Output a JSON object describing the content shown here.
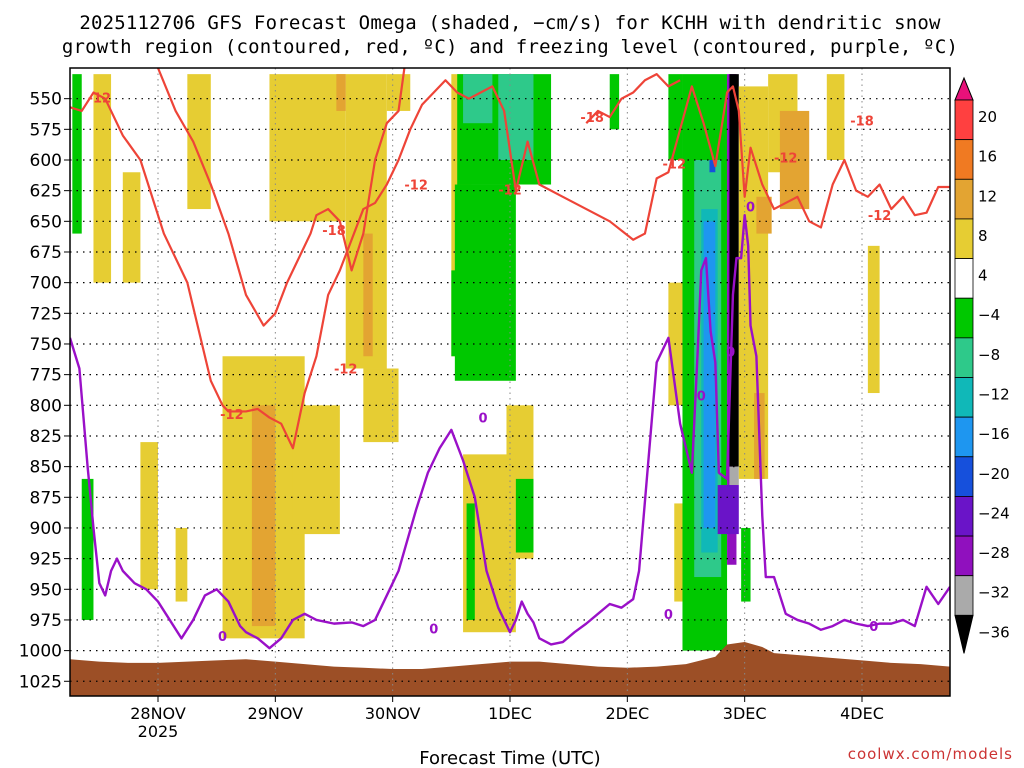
{
  "chart_data": {
    "type": "heatmap",
    "title_line1": "2025112706 GFS Forecast Omega (shaded, −cm/s) for KCHH with dendritic snow",
    "title_line2": "growth region (contoured, red, ºC) and freezing level (contoured, purple, ºC)",
    "xlabel": "Forecast Time (UTC)",
    "ylabel": "",
    "credit": "coolwx.com/models",
    "x_range_days": [
      0.0,
      7.5
    ],
    "y_range_hpa": [
      1037,
      525
    ],
    "x_ticks": [
      {
        "day": 0.75,
        "label": "28NOV",
        "sub": "2025"
      },
      {
        "day": 1.75,
        "label": "29NOV",
        "sub": ""
      },
      {
        "day": 2.75,
        "label": "30NOV",
        "sub": ""
      },
      {
        "day": 3.75,
        "label": "1DEC",
        "sub": ""
      },
      {
        "day": 4.75,
        "label": "2DEC",
        "sub": ""
      },
      {
        "day": 5.75,
        "label": "3DEC",
        "sub": ""
      },
      {
        "day": 6.75,
        "label": "4DEC",
        "sub": ""
      }
    ],
    "y_ticks": [
      550,
      575,
      600,
      625,
      650,
      675,
      700,
      725,
      750,
      775,
      800,
      825,
      850,
      875,
      900,
      925,
      950,
      975,
      1000,
      1025
    ],
    "colorbar": {
      "labels": [
        "20",
        "16",
        "12",
        "8",
        "4",
        "−4",
        "−8",
        "−12",
        "−16",
        "−20",
        "−24",
        "−28",
        "−32",
        "−36"
      ],
      "colors": [
        "#ff4040",
        "#f07a22",
        "#e3a432",
        "#e6cd33",
        "#ffffff",
        "#00c800",
        "#2ec98a",
        "#10b8b8",
        "#1e96f0",
        "#1650dc",
        "#6a14c8",
        "#9010be",
        "#aaaaaa",
        "#000000"
      ],
      "top_color": "#e8117a",
      "bottom_color": "#000000"
    },
    "shading_blobs": [
      {
        "x0": 0.02,
        "x1": 0.1,
        "p0": 530,
        "p1": 660,
        "cat": "-4"
      },
      {
        "x0": 0.1,
        "x1": 0.2,
        "p0": 860,
        "p1": 975,
        "cat": "-4"
      },
      {
        "x0": 0.2,
        "x1": 0.35,
        "p0": 530,
        "p1": 700,
        "cat": "4"
      },
      {
        "x0": 0.45,
        "x1": 0.6,
        "p0": 610,
        "p1": 700,
        "cat": "4"
      },
      {
        "x0": 0.6,
        "x1": 0.75,
        "p0": 830,
        "p1": 950,
        "cat": "4"
      },
      {
        "x0": 0.9,
        "x1": 1.0,
        "p0": 900,
        "p1": 960,
        "cat": "4"
      },
      {
        "x0": 1.0,
        "x1": 1.2,
        "p0": 530,
        "p1": 640,
        "cat": "4"
      },
      {
        "x0": 1.3,
        "x1": 2.0,
        "p0": 760,
        "p1": 990,
        "cat": "4"
      },
      {
        "x0": 1.55,
        "x1": 1.75,
        "p0": 800,
        "p1": 980,
        "cat": "8"
      },
      {
        "x0": 1.7,
        "x1": 2.35,
        "p0": 530,
        "p1": 650,
        "cat": "4"
      },
      {
        "x0": 2.35,
        "x1": 2.7,
        "p0": 530,
        "p1": 770,
        "cat": "4"
      },
      {
        "x0": 2.27,
        "x1": 2.35,
        "p0": 530,
        "p1": 560,
        "cat": "8"
      },
      {
        "x0": 2.5,
        "x1": 2.58,
        "p0": 660,
        "p1": 760,
        "cat": "8"
      },
      {
        "x0": 2.7,
        "x1": 2.9,
        "p0": 530,
        "p1": 560,
        "cat": "4"
      },
      {
        "x0": 1.9,
        "x1": 2.3,
        "p0": 800,
        "p1": 905,
        "cat": "4"
      },
      {
        "x0": 2.5,
        "x1": 2.8,
        "p0": 770,
        "p1": 830,
        "cat": "4"
      },
      {
        "x0": 3.25,
        "x1": 3.42,
        "p0": 530,
        "p1": 760,
        "cat": "4"
      },
      {
        "x0": 3.25,
        "x1": 3.42,
        "p0": 690,
        "p1": 760,
        "cat": "-4"
      },
      {
        "x0": 3.3,
        "x1": 4.1,
        "p0": 530,
        "p1": 620,
        "cat": "-4"
      },
      {
        "x0": 3.35,
        "x1": 3.6,
        "p0": 530,
        "p1": 570,
        "cat": "-8"
      },
      {
        "x0": 3.65,
        "x1": 3.95,
        "p0": 530,
        "p1": 600,
        "cat": "-8"
      },
      {
        "x0": 3.28,
        "x1": 3.8,
        "p0": 620,
        "p1": 780,
        "cat": "-4"
      },
      {
        "x0": 3.72,
        "x1": 3.95,
        "p0": 800,
        "p1": 925,
        "cat": "4"
      },
      {
        "x0": 3.35,
        "x1": 3.8,
        "p0": 840,
        "p1": 985,
        "cat": "4"
      },
      {
        "x0": 3.8,
        "x1": 3.95,
        "p0": 860,
        "p1": 920,
        "cat": "-4"
      },
      {
        "x0": 3.38,
        "x1": 3.45,
        "p0": 880,
        "p1": 975,
        "cat": "-4"
      },
      {
        "x0": 4.6,
        "x1": 4.68,
        "p0": 530,
        "p1": 575,
        "cat": "-4"
      },
      {
        "x0": 5.1,
        "x1": 5.25,
        "p0": 700,
        "p1": 800,
        "cat": "4"
      },
      {
        "x0": 5.25,
        "x1": 5.45,
        "p0": 750,
        "p1": 810,
        "cat": "4"
      },
      {
        "x0": 5.15,
        "x1": 5.3,
        "p0": 880,
        "p1": 960,
        "cat": "4"
      },
      {
        "x0": 5.1,
        "x1": 5.22,
        "p0": 530,
        "p1": 600,
        "cat": "-4"
      },
      {
        "x0": 5.22,
        "x1": 5.6,
        "p0": 530,
        "p1": 1000,
        "cat": "-4"
      },
      {
        "x0": 5.32,
        "x1": 5.55,
        "p0": 600,
        "p1": 940,
        "cat": "-8"
      },
      {
        "x0": 5.38,
        "x1": 5.52,
        "p0": 640,
        "p1": 920,
        "cat": "-12"
      },
      {
        "x0": 5.4,
        "x1": 5.5,
        "p0": 650,
        "p1": 900,
        "cat": "-16"
      },
      {
        "x0": 5.45,
        "x1": 5.5,
        "p0": 600,
        "p1": 610,
        "cat": "-20"
      },
      {
        "x0": 5.6,
        "x1": 5.68,
        "p0": 530,
        "p1": 930,
        "cat": "-28"
      },
      {
        "x0": 5.62,
        "x1": 5.7,
        "p0": 530,
        "p1": 850,
        "cat": "-36"
      },
      {
        "x0": 5.62,
        "x1": 5.7,
        "p0": 850,
        "p1": 865,
        "cat": "-32"
      },
      {
        "x0": 5.52,
        "x1": 5.7,
        "p0": 865,
        "p1": 905,
        "cat": "-24"
      },
      {
        "x0": 5.7,
        "x1": 5.95,
        "p0": 540,
        "p1": 860,
        "cat": "4"
      },
      {
        "x0": 5.85,
        "x1": 5.98,
        "p0": 630,
        "p1": 660,
        "cat": "8"
      },
      {
        "x0": 5.83,
        "x1": 5.92,
        "p0": 790,
        "p1": 860,
        "cat": "8"
      },
      {
        "x0": 5.95,
        "x1": 6.2,
        "p0": 530,
        "p1": 610,
        "cat": "4"
      },
      {
        "x0": 6.05,
        "x1": 6.3,
        "p0": 560,
        "p1": 640,
        "cat": "8"
      },
      {
        "x0": 6.45,
        "x1": 6.6,
        "p0": 530,
        "p1": 600,
        "cat": "4"
      },
      {
        "x0": 6.8,
        "x1": 6.9,
        "p0": 670,
        "p1": 790,
        "cat": "4"
      },
      {
        "x0": 5.72,
        "x1": 5.8,
        "p0": 900,
        "p1": 960,
        "cat": "-4"
      }
    ],
    "surface_terrain": {
      "color": "#9c4f26",
      "x": [
        0.0,
        0.25,
        0.5,
        0.75,
        1.0,
        1.25,
        1.5,
        1.75,
        2.0,
        2.25,
        2.5,
        2.75,
        3.0,
        3.25,
        3.5,
        3.75,
        4.0,
        4.25,
        4.5,
        4.75,
        5.0,
        5.25,
        5.5,
        5.6,
        5.75,
        5.9,
        6.0,
        6.25,
        6.5,
        6.75,
        7.0,
        7.25,
        7.5
      ],
      "p": [
        1007,
        1009,
        1010,
        1010,
        1009,
        1008,
        1007,
        1009,
        1011,
        1013,
        1014,
        1015,
        1015,
        1013,
        1011,
        1009,
        1009,
        1011,
        1013,
        1014,
        1013,
        1011,
        1005,
        995,
        993,
        997,
        1002,
        1004,
        1006,
        1008,
        1010,
        1011,
        1013
      ]
    },
    "contours_dgz": [
      {
        "label": "-12",
        "x": [
          0.0,
          0.1,
          0.2,
          0.3,
          0.45,
          0.6,
          0.8,
          1.0,
          1.2,
          1.3,
          1.35,
          1.4,
          1.5,
          1.6,
          1.7,
          1.8,
          1.9,
          2.0,
          2.1,
          2.2,
          2.3,
          2.4,
          2.5,
          2.6,
          2.7,
          2.8,
          2.9,
          3.0,
          3.1,
          3.2,
          3.3,
          3.4,
          3.5,
          3.6,
          3.7,
          3.8,
          3.9,
          4.0,
          4.2,
          4.4,
          4.6,
          4.8,
          4.9,
          5.0,
          5.1,
          5.2,
          5.3,
          5.4,
          5.5,
          5.6,
          5.65,
          5.7,
          5.75,
          5.8,
          5.9,
          6.0,
          6.1,
          6.2,
          6.3,
          6.4,
          6.5,
          6.6,
          6.7,
          6.8,
          6.9,
          7.0,
          7.1,
          7.2,
          7.3,
          7.4,
          7.5
        ],
        "p": [
          557,
          560,
          545,
          550,
          580,
          600,
          660,
          700,
          780,
          800,
          805,
          805,
          805,
          803,
          810,
          815,
          835,
          790,
          760,
          710,
          690,
          665,
          640,
          635,
          620,
          600,
          575,
          555,
          545,
          535,
          545,
          550,
          545,
          540,
          560,
          625,
          585,
          620,
          630,
          640,
          650,
          665,
          660,
          615,
          610,
          575,
          540,
          570,
          605,
          545,
          540,
          560,
          630,
          590,
          620,
          640,
          635,
          630,
          650,
          655,
          620,
          600,
          625,
          630,
          620,
          640,
          630,
          645,
          643,
          622,
          622
        ]
      },
      {
        "label": "-18",
        "x": [
          0.75,
          0.9,
          1.05,
          1.2,
          1.35,
          1.5,
          1.65,
          1.75,
          1.85,
          1.95,
          2.05,
          2.1,
          2.2,
          2.3,
          2.4,
          2.5,
          2.6,
          2.7,
          2.8,
          2.85
        ],
        "p": [
          525,
          560,
          585,
          620,
          660,
          710,
          735,
          725,
          700,
          680,
          660,
          645,
          640,
          650,
          690,
          660,
          600,
          570,
          560,
          525
        ]
      },
      {
        "label": "-18",
        "x": [
          4.4,
          4.5,
          4.6,
          4.7,
          4.8,
          4.9,
          5.0,
          5.1,
          5.2
        ],
        "p": [
          570,
          560,
          565,
          550,
          545,
          535,
          530,
          540,
          535
        ]
      }
    ],
    "contour_labels": [
      {
        "text": "-12",
        "x": 0.25,
        "p": 549
      },
      {
        "text": "-12",
        "x": 1.38,
        "p": 807
      },
      {
        "text": "-12",
        "x": 2.35,
        "p": 770
      },
      {
        "text": "-18",
        "x": 2.25,
        "p": 657
      },
      {
        "text": "-12",
        "x": 2.95,
        "p": 620
      },
      {
        "text": "-12",
        "x": 3.75,
        "p": 624
      },
      {
        "text": "-18",
        "x": 4.45,
        "p": 565
      },
      {
        "text": "-12",
        "x": 5.15,
        "p": 603
      },
      {
        "text": "-12",
        "x": 6.1,
        "p": 598
      },
      {
        "text": "-18",
        "x": 6.75,
        "p": 568
      },
      {
        "text": "-12",
        "x": 6.9,
        "p": 645
      }
    ],
    "contour_freezing": {
      "label": "0",
      "x": [
        0.0,
        0.08,
        0.15,
        0.2,
        0.25,
        0.3,
        0.35,
        0.4,
        0.45,
        0.55,
        0.65,
        0.75,
        0.85,
        0.95,
        1.05,
        1.15,
        1.25,
        1.35,
        1.45,
        1.5,
        1.6,
        1.7,
        1.8,
        1.9,
        2.0,
        2.1,
        2.25,
        2.4,
        2.5,
        2.6,
        2.7,
        2.8,
        2.95,
        3.05,
        3.15,
        3.25,
        3.35,
        3.45,
        3.55,
        3.65,
        3.7,
        3.75,
        3.8,
        3.85,
        3.9,
        3.95,
        4.0,
        4.1,
        4.2,
        4.3,
        4.4,
        4.5,
        4.6,
        4.7,
        4.8,
        4.85,
        5.0,
        5.1,
        5.2,
        5.3,
        5.35,
        5.38,
        5.42,
        5.46,
        5.5,
        5.53,
        5.6,
        5.65,
        5.68,
        5.72,
        5.75,
        5.78,
        5.8,
        5.85,
        5.9,
        5.93,
        5.95,
        6.0,
        6.1,
        6.2,
        6.3,
        6.4,
        6.5,
        6.6,
        6.7,
        6.8,
        6.9,
        7.0,
        7.1,
        7.2,
        7.3,
        7.4,
        7.5
      ],
      "p": [
        745,
        770,
        850,
        900,
        945,
        955,
        935,
        925,
        935,
        945,
        950,
        960,
        975,
        990,
        975,
        955,
        950,
        960,
        980,
        985,
        990,
        998,
        990,
        975,
        970,
        975,
        978,
        977,
        980,
        975,
        955,
        935,
        885,
        855,
        835,
        820,
        845,
        875,
        935,
        965,
        975,
        985,
        975,
        960,
        970,
        977,
        990,
        995,
        993,
        985,
        978,
        970,
        962,
        965,
        958,
        935,
        765,
        745,
        815,
        855,
        755,
        690,
        680,
        740,
        765,
        855,
        860,
        710,
        680,
        680,
        645,
        670,
        735,
        760,
        890,
        940,
        940,
        940,
        970,
        975,
        978,
        983,
        980,
        975,
        978,
        980,
        978,
        978,
        975,
        980,
        948,
        962,
        948
      ]
    },
    "freezing_labels": [
      {
        "text": "0",
        "x": 1.3,
        "p": 988
      },
      {
        "text": "0",
        "x": 3.1,
        "p": 982
      },
      {
        "text": "0",
        "x": 3.52,
        "p": 810
      },
      {
        "text": "0",
        "x": 5.1,
        "p": 970
      },
      {
        "text": "0",
        "x": 5.38,
        "p": 792
      },
      {
        "text": "0",
        "x": 5.63,
        "p": 756
      },
      {
        "text": "0",
        "x": 5.8,
        "p": 638
      },
      {
        "text": "0",
        "x": 6.85,
        "p": 980
      }
    ]
  }
}
